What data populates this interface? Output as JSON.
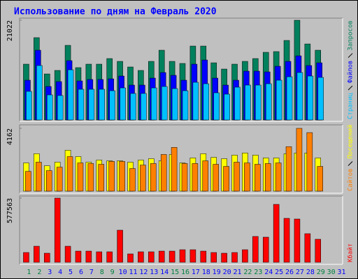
{
  "chart_data": [
    {
      "type": "bar",
      "title": "Использование по дням на Февраль 2020",
      "ylim": [
        0,
        21022
      ],
      "yticks": [
        21022
      ],
      "series": [
        {
          "name": "Запросов",
          "color": "#00805c",
          "values": [
            11760,
            17350,
            9700,
            10440,
            15730,
            11030,
            11760,
            11760,
            12940,
            12350,
            11170,
            10440,
            12350,
            14700,
            12350,
            11910,
            15580,
            15580,
            12050,
            10730,
            11760,
            12350,
            12940,
            14260,
            14410,
            16760,
            21022,
            16020,
            14700,
            null,
            null
          ]
        },
        {
          "name": "Файлов",
          "color": "#0000ff",
          "values": [
            8380,
            14700,
            7060,
            8090,
            12500,
            8230,
            8530,
            8530,
            8670,
            9260,
            7350,
            7350,
            8820,
            10000,
            9410,
            8380,
            11760,
            12640,
            8820,
            7350,
            8380,
            10290,
            10290,
            10140,
            11320,
            12350,
            13520,
            11470,
            12050,
            null,
            null
          ]
        },
        {
          "name": "Страниц",
          "color": "#00c0ff",
          "values": [
            6030,
            11470,
            5290,
            5150,
            10580,
            6470,
            6470,
            6470,
            6170,
            6760,
            5590,
            5590,
            6760,
            7060,
            6620,
            6170,
            7940,
            7640,
            5730,
            5440,
            6910,
            7350,
            7350,
            7640,
            8380,
            9110,
            10000,
            9260,
            8970,
            null,
            null
          ]
        }
      ]
    },
    {
      "type": "bar",
      "ylim": [
        0,
        4162
      ],
      "yticks": [
        4162
      ],
      "series": [
        {
          "name": "Посещений",
          "color": "#ffff00",
          "values": [
            1870,
            2480,
            1680,
            1920,
            2710,
            2290,
            1920,
            2060,
            2010,
            2010,
            1920,
            2060,
            2150,
            2010,
            2430,
            1870,
            2200,
            2480,
            2240,
            2150,
            2390,
            2530,
            2390,
            2200,
            2200,
            2480,
            2530,
            2530,
            2200,
            null,
            null
          ]
        },
        {
          "name": "Сайтов",
          "color": "#ff8000",
          "values": [
            1310,
            1920,
            1360,
            1590,
            2290,
            1870,
            1830,
            1780,
            1970,
            1970,
            1500,
            1730,
            1830,
            2430,
            2900,
            1830,
            1830,
            2010,
            1780,
            1640,
            1920,
            1870,
            1780,
            1830,
            1870,
            2950,
            4162,
            3880,
            1640,
            null,
            null
          ]
        }
      ]
    },
    {
      "type": "bar",
      "ylim": [
        0,
        577563
      ],
      "yticks": [
        577563
      ],
      "categories": [
        "1",
        "2",
        "3",
        "4",
        "5",
        "6",
        "7",
        "8",
        "9",
        "10",
        "11",
        "12",
        "13",
        "14",
        "15",
        "16",
        "17",
        "18",
        "19",
        "20",
        "21",
        "22",
        "23",
        "24",
        "25",
        "26",
        "27",
        "28",
        "29",
        "30",
        "31"
      ],
      "category_colors": [
        "#008040",
        "#008040",
        "#0000ff",
        "#0000ff",
        "#0000ff",
        "#0000ff",
        "#0000ff",
        "#008040",
        "#008040",
        "#0000ff",
        "#0000ff",
        "#0000ff",
        "#0000ff",
        "#0000ff",
        "#008040",
        "#008040",
        "#0000ff",
        "#0000ff",
        "#0000ff",
        "#0000ff",
        "#0000ff",
        "#008040",
        "#008040",
        "#0000ff",
        "#0000ff",
        "#0000ff",
        "#0000ff",
        "#0000ff",
        "#008040",
        "#008040",
        "#0000ff"
      ],
      "series": [
        {
          "name": "Кбайт",
          "color": "#ff0000",
          "values": [
            87900,
            144400,
            81600,
            577563,
            144400,
            100400,
            100400,
            94200,
            94200,
            288800,
            75300,
            94200,
            94200,
            100400,
            100400,
            113000,
            113000,
            100400,
            87900,
            81600,
            87900,
            113000,
            232300,
            226000,
            521100,
            395500,
            389200,
            257400,
            207200,
            null,
            null
          ]
        }
      ]
    }
  ]
}
